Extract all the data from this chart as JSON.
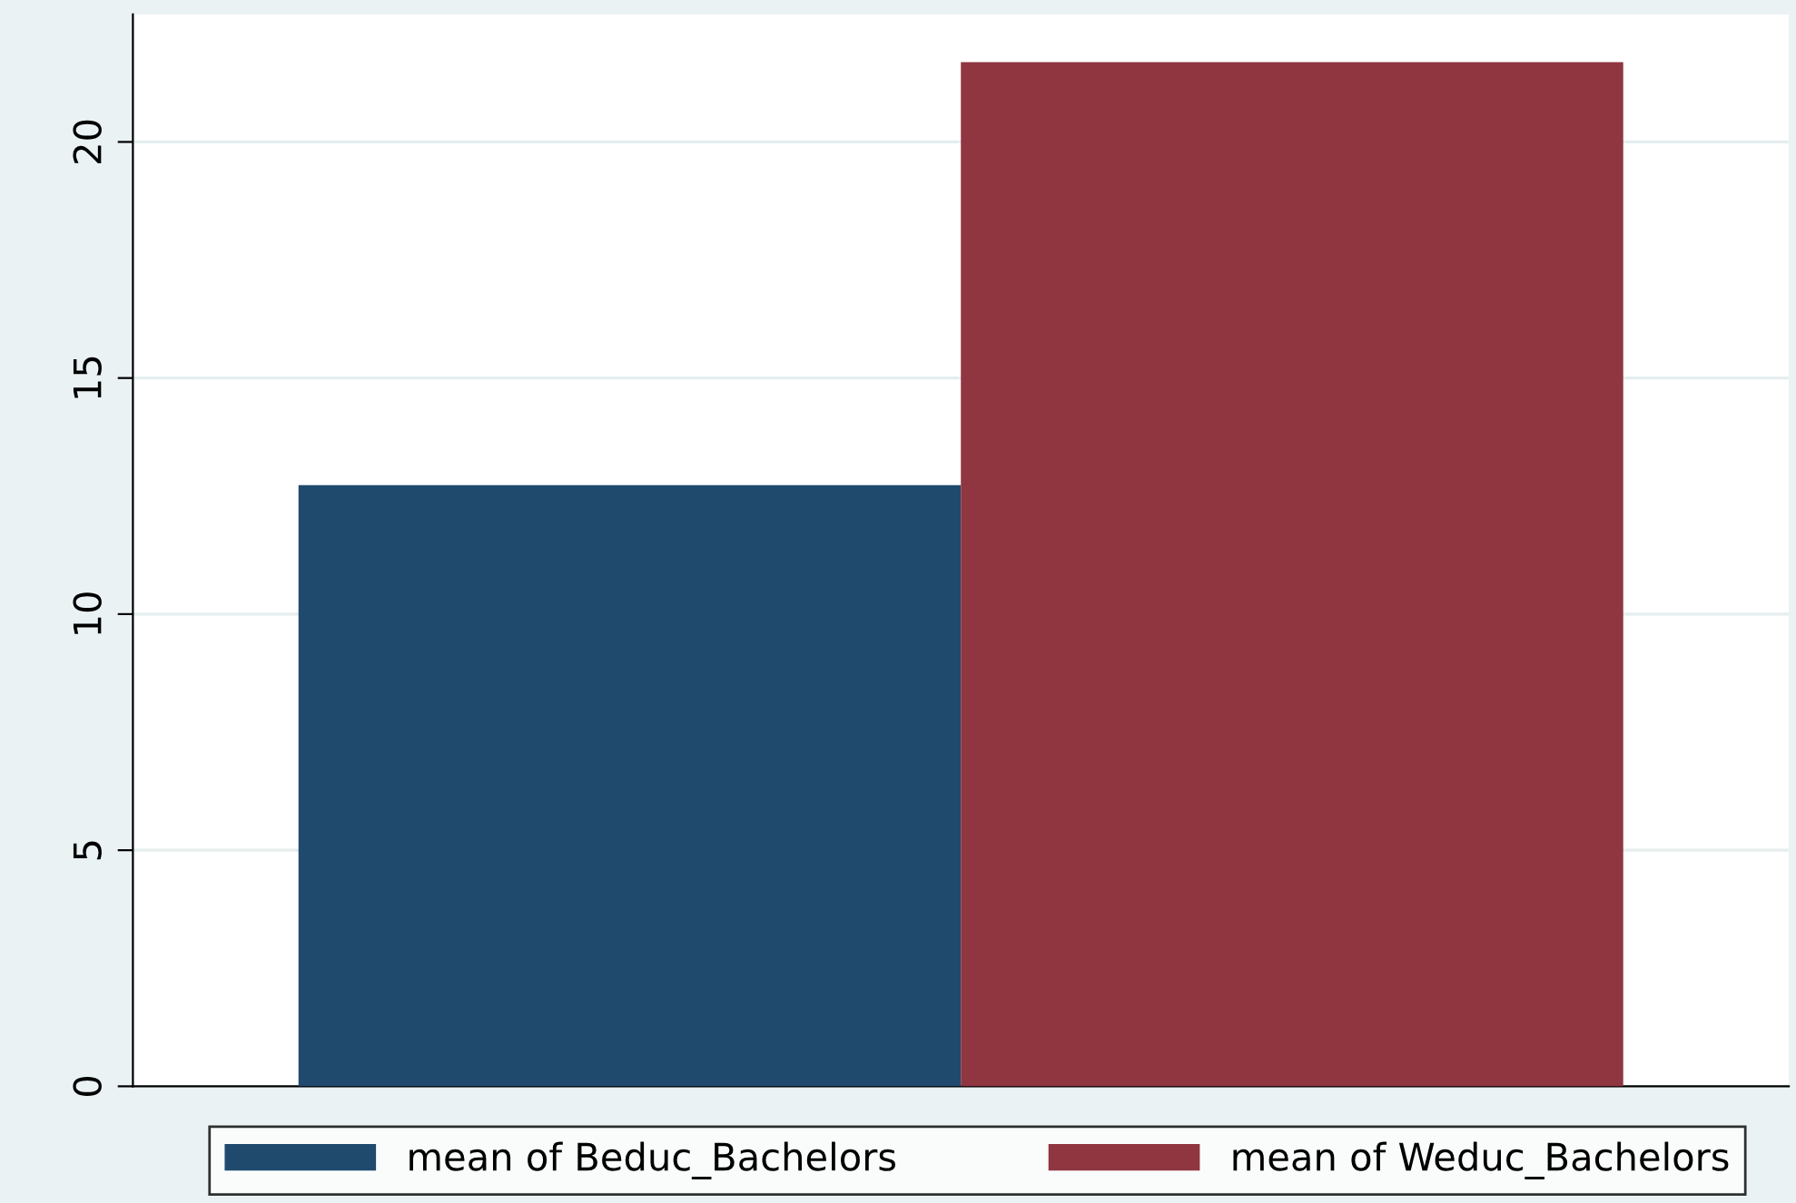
{
  "chart_data": {
    "type": "bar",
    "categories": [
      null
    ],
    "series": [
      {
        "name": "mean of Beduc_Bachelors",
        "color": "#1f4a6e",
        "values": [
          12.73
        ]
      },
      {
        "name": "mean of Weduc_Bachelors",
        "color": "#8f3640",
        "values": [
          21.69
        ]
      }
    ],
    "ylim": [
      0,
      22.7
    ],
    "yticks": [
      0,
      5,
      10,
      15,
      20
    ],
    "grid": "y",
    "legend": "bottom"
  }
}
